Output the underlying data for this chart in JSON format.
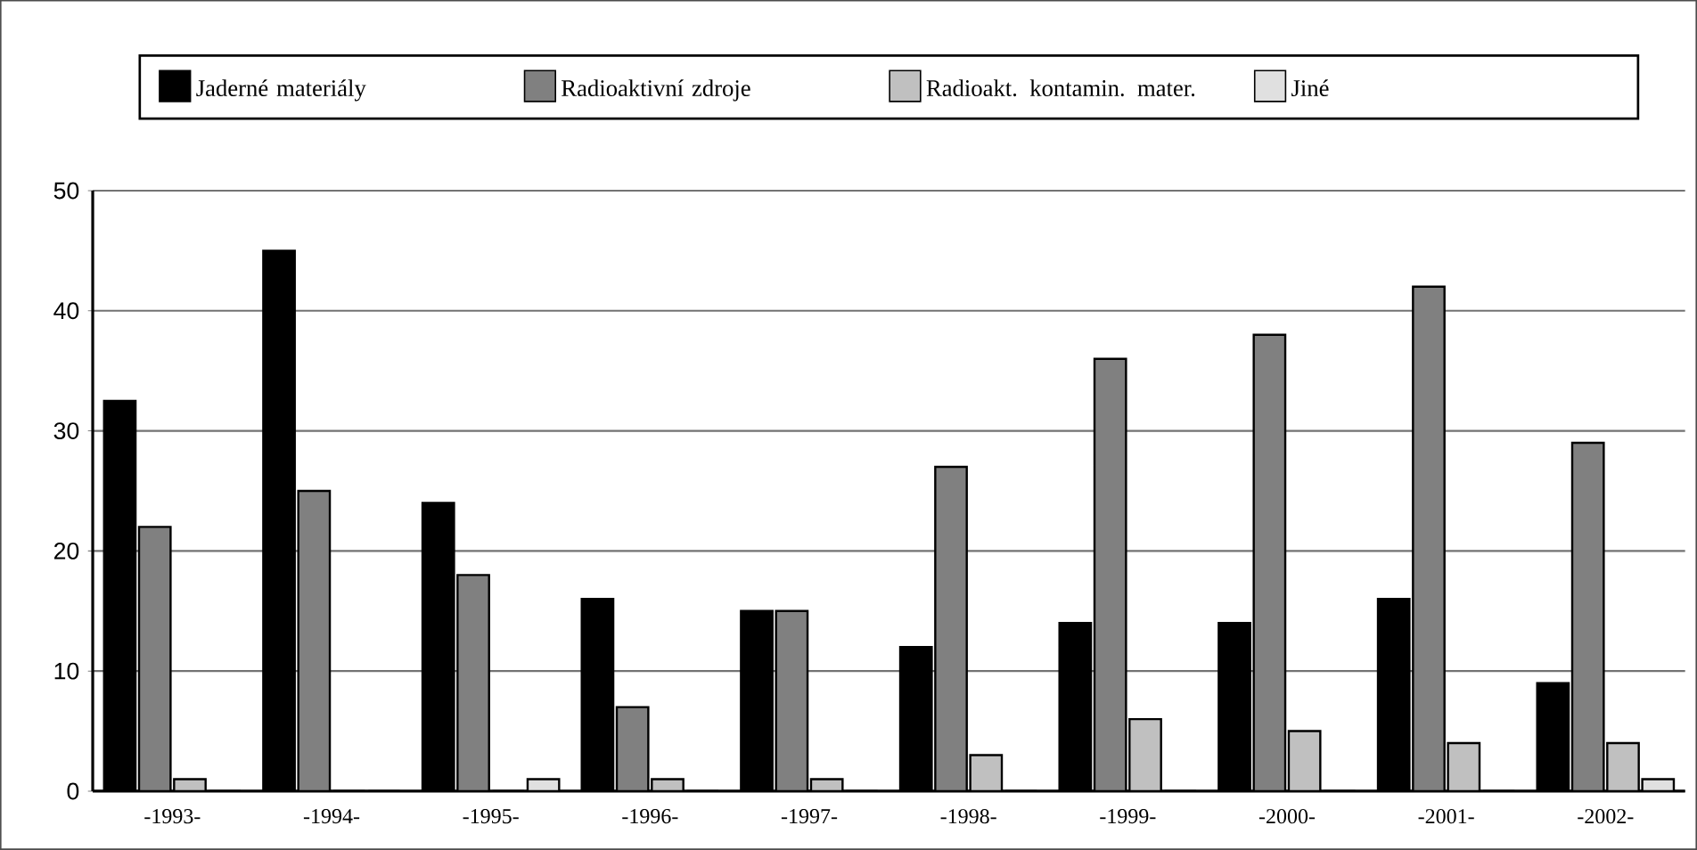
{
  "chart_data": {
    "type": "bar",
    "categories": [
      "-1993-",
      "-1994-",
      "-1995-",
      "-1996-",
      "-1997-",
      "-1998-",
      "-1999-",
      "-2000-",
      "-2001-",
      "-2002-"
    ],
    "series": [
      {
        "name": "Jaderné materiály",
        "color": "#000000",
        "values": [
          32.5,
          45,
          24,
          16,
          15,
          12,
          14,
          14,
          16,
          9
        ]
      },
      {
        "name": "Radioaktivní zdroje",
        "color": "#808080",
        "values": [
          22,
          25,
          18,
          7,
          15,
          27,
          36,
          38,
          42,
          29
        ]
      },
      {
        "name": "Radioakt. kontamin. mater.",
        "color": "#c0c0c0",
        "values": [
          1,
          0,
          0,
          1,
          1,
          3,
          6,
          5,
          4,
          4
        ]
      },
      {
        "name": "Jiné",
        "color": "#e0e0e0",
        "values": [
          0,
          0,
          1,
          0,
          0,
          0,
          0,
          0,
          0,
          1
        ]
      }
    ],
    "ylim": [
      0,
      50
    ],
    "yticks": [
      0,
      10,
      20,
      30,
      40,
      50
    ],
    "grid": "y",
    "legend": "top"
  }
}
